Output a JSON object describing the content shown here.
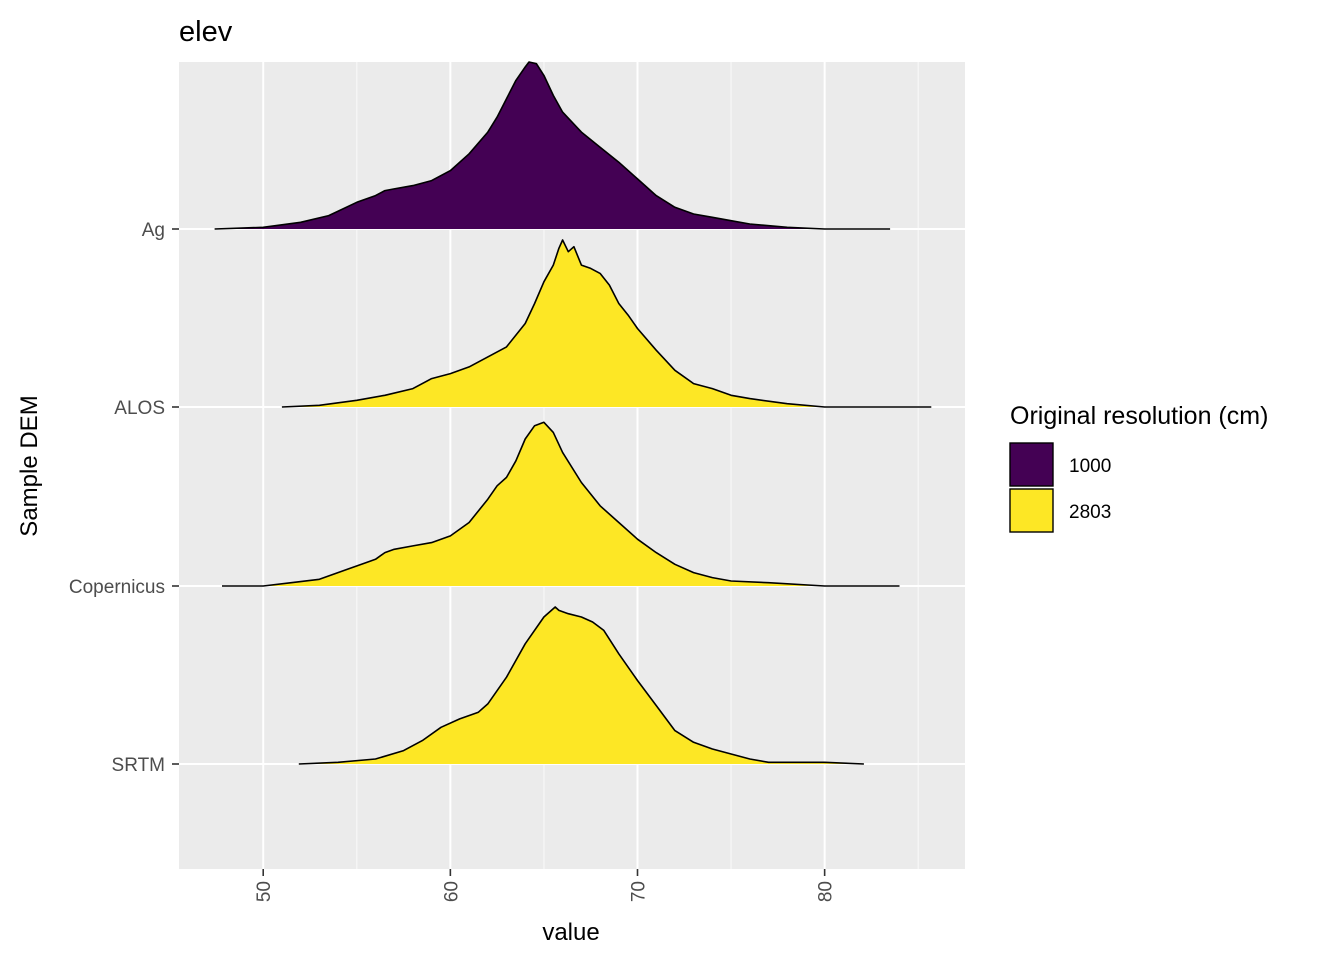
{
  "chart_data": {
    "type": "area",
    "subtype": "ridgeline density",
    "title": "elev",
    "xlabel": "value",
    "ylabel": "Sample DEM",
    "xlim": [
      45.5,
      87.5
    ],
    "x_ticks": [
      50,
      60,
      70,
      80
    ],
    "x_tick_labels": [
      "50",
      "60",
      "70",
      "80"
    ],
    "x_tick_rotation": -90,
    "categories": [
      "Ag",
      "ALOS",
      "Copernicus",
      "SRTM"
    ],
    "grid": true,
    "panel_background": "#ebebeb",
    "legend": {
      "title": "Original resolution (cm)",
      "position": "right",
      "entries": [
        {
          "label": "1000",
          "color": "#440154"
        },
        {
          "label": "2803",
          "color": "#fde725"
        }
      ]
    },
    "series": [
      {
        "category": "Ag",
        "resolution": "1000",
        "color": "#440154",
        "points": [
          [
            47.4,
            0.0
          ],
          [
            50.0,
            0.01
          ],
          [
            52.0,
            0.04
          ],
          [
            53.5,
            0.08
          ],
          [
            55.0,
            0.16
          ],
          [
            56.0,
            0.2
          ],
          [
            56.5,
            0.23
          ],
          [
            57.0,
            0.24
          ],
          [
            58.0,
            0.26
          ],
          [
            59.0,
            0.29
          ],
          [
            60.0,
            0.35
          ],
          [
            61.0,
            0.45
          ],
          [
            62.0,
            0.58
          ],
          [
            62.5,
            0.67
          ],
          [
            63.0,
            0.78
          ],
          [
            63.5,
            0.89
          ],
          [
            64.0,
            0.97
          ],
          [
            64.2,
            1.0
          ],
          [
            64.6,
            0.99
          ],
          [
            65.0,
            0.92
          ],
          [
            65.5,
            0.8
          ],
          [
            66.0,
            0.7
          ],
          [
            67.0,
            0.58
          ],
          [
            68.0,
            0.49
          ],
          [
            69.0,
            0.4
          ],
          [
            70.0,
            0.3
          ],
          [
            71.0,
            0.2
          ],
          [
            72.0,
            0.13
          ],
          [
            73.0,
            0.09
          ],
          [
            74.0,
            0.07
          ],
          [
            75.0,
            0.05
          ],
          [
            76.0,
            0.03
          ],
          [
            78.0,
            0.01
          ],
          [
            80.0,
            0.0
          ],
          [
            83.5,
            0.0
          ]
        ]
      },
      {
        "category": "ALOS",
        "resolution": "2803",
        "color": "#fde725",
        "points": [
          [
            51.0,
            0.0
          ],
          [
            53.0,
            0.01
          ],
          [
            55.0,
            0.04
          ],
          [
            56.5,
            0.07
          ],
          [
            58.0,
            0.11
          ],
          [
            59.0,
            0.17
          ],
          [
            60.0,
            0.2
          ],
          [
            61.0,
            0.24
          ],
          [
            62.0,
            0.3
          ],
          [
            63.0,
            0.36
          ],
          [
            64.0,
            0.5
          ],
          [
            64.5,
            0.62
          ],
          [
            65.0,
            0.75
          ],
          [
            65.5,
            0.85
          ],
          [
            65.8,
            0.95
          ],
          [
            66.0,
            1.0
          ],
          [
            66.3,
            0.93
          ],
          [
            66.6,
            0.96
          ],
          [
            67.0,
            0.85
          ],
          [
            67.5,
            0.83
          ],
          [
            68.0,
            0.8
          ],
          [
            68.5,
            0.73
          ],
          [
            69.0,
            0.62
          ],
          [
            69.5,
            0.55
          ],
          [
            70.0,
            0.47
          ],
          [
            71.0,
            0.34
          ],
          [
            72.0,
            0.22
          ],
          [
            73.0,
            0.14
          ],
          [
            74.0,
            0.11
          ],
          [
            75.0,
            0.07
          ],
          [
            76.0,
            0.05
          ],
          [
            78.0,
            0.02
          ],
          [
            80.0,
            0.0
          ],
          [
            85.7,
            0.0
          ]
        ]
      },
      {
        "category": "Copernicus",
        "resolution": "2803",
        "color": "#fde725",
        "points": [
          [
            47.8,
            0.0
          ],
          [
            50.0,
            0.0
          ],
          [
            51.5,
            0.02
          ],
          [
            53.0,
            0.04
          ],
          [
            54.5,
            0.1
          ],
          [
            55.5,
            0.14
          ],
          [
            56.0,
            0.16
          ],
          [
            56.5,
            0.2
          ],
          [
            57.0,
            0.22
          ],
          [
            58.0,
            0.24
          ],
          [
            59.0,
            0.26
          ],
          [
            60.0,
            0.3
          ],
          [
            61.0,
            0.38
          ],
          [
            62.0,
            0.52
          ],
          [
            62.5,
            0.6
          ],
          [
            63.0,
            0.65
          ],
          [
            63.5,
            0.75
          ],
          [
            64.0,
            0.88
          ],
          [
            64.5,
            0.96
          ],
          [
            65.0,
            0.98
          ],
          [
            65.5,
            0.92
          ],
          [
            66.0,
            0.8
          ],
          [
            67.0,
            0.62
          ],
          [
            68.0,
            0.48
          ],
          [
            69.0,
            0.38
          ],
          [
            70.0,
            0.28
          ],
          [
            71.0,
            0.2
          ],
          [
            72.0,
            0.13
          ],
          [
            73.0,
            0.08
          ],
          [
            74.0,
            0.05
          ],
          [
            75.0,
            0.03
          ],
          [
            77.0,
            0.02
          ],
          [
            80.0,
            0.0
          ],
          [
            84.0,
            0.0
          ]
        ]
      },
      {
        "category": "SRTM",
        "resolution": "2803",
        "color": "#fde725",
        "points": [
          [
            51.9,
            0.0
          ],
          [
            54.0,
            0.01
          ],
          [
            56.0,
            0.03
          ],
          [
            57.5,
            0.08
          ],
          [
            58.5,
            0.14
          ],
          [
            59.5,
            0.22
          ],
          [
            60.5,
            0.27
          ],
          [
            61.5,
            0.31
          ],
          [
            62.0,
            0.36
          ],
          [
            63.0,
            0.52
          ],
          [
            64.0,
            0.72
          ],
          [
            65.0,
            0.88
          ],
          [
            65.6,
            0.94
          ],
          [
            65.8,
            0.92
          ],
          [
            66.3,
            0.9
          ],
          [
            67.0,
            0.88
          ],
          [
            67.6,
            0.85
          ],
          [
            68.2,
            0.8
          ],
          [
            69.0,
            0.66
          ],
          [
            70.0,
            0.5
          ],
          [
            71.0,
            0.35
          ],
          [
            72.0,
            0.2
          ],
          [
            73.0,
            0.13
          ],
          [
            74.0,
            0.09
          ],
          [
            75.0,
            0.06
          ],
          [
            76.0,
            0.03
          ],
          [
            77.0,
            0.01
          ],
          [
            80.0,
            0.01
          ],
          [
            82.1,
            0.0
          ]
        ]
      }
    ]
  }
}
